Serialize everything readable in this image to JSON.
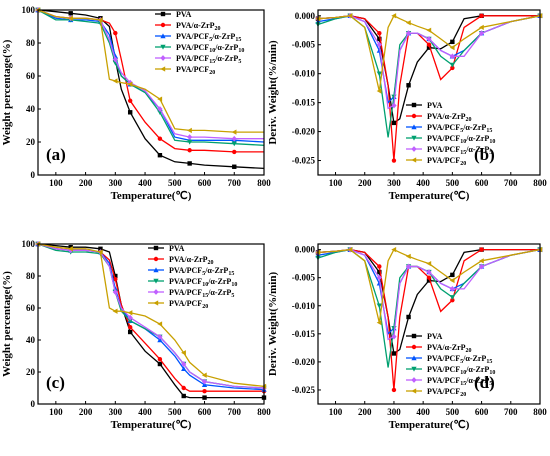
{
  "colors": [
    "#000000",
    "#ff0000",
    "#0055ff",
    "#00a070",
    "#c060ff",
    "#c8a000"
  ],
  "markers": [
    "square",
    "circle",
    "triangle-up",
    "triangle-down",
    "diamond",
    "triangle-left"
  ],
  "legend": [
    {
      "base": "PVA",
      "sub": ""
    },
    {
      "base": "PVA/α-ZrP",
      "sub": "20"
    },
    {
      "base": "PVA/PCF",
      "sub": "5",
      "base2": "/α-ZrP",
      "sub2": "15"
    },
    {
      "base": "PVA/PCF",
      "sub": "10",
      "base2": "/α-ZrP",
      "sub2": "10"
    },
    {
      "base": "PVA/PCF",
      "sub": "15",
      "base2": "/α-ZrP",
      "sub2": "5"
    },
    {
      "base": "PVA/PCF",
      "sub": "20"
    }
  ],
  "chart_data": [
    {
      "panel": "(a)",
      "type": "line",
      "xlabel": "Temperature(℃)",
      "ylabel": "Weight percentage(%)",
      "xlim": [
        40,
        800
      ],
      "ylim": [
        0,
        100
      ],
      "xticks": [
        100,
        200,
        300,
        400,
        500,
        600,
        700,
        800
      ],
      "yticks": [
        0,
        20,
        40,
        60,
        80,
        100
      ],
      "legend_position": "top-right",
      "series": [
        {
          "x": [
            40,
            100,
            150,
            200,
            250,
            280,
            300,
            320,
            350,
            400,
            450,
            500,
            550,
            600,
            700,
            800
          ],
          "y": [
            100,
            99,
            98,
            97,
            95,
            90,
            70,
            52,
            38,
            22,
            12,
            8,
            7,
            6,
            5,
            4
          ]
        },
        {
          "x": [
            40,
            100,
            150,
            200,
            250,
            280,
            300,
            320,
            350,
            400,
            450,
            500,
            550,
            600,
            700,
            800
          ],
          "y": [
            100,
            96,
            95,
            95,
            94,
            92,
            86,
            70,
            45,
            32,
            22,
            16,
            15,
            15,
            14,
            14
          ]
        },
        {
          "x": [
            40,
            100,
            150,
            200,
            250,
            280,
            300,
            320,
            350,
            400,
            450,
            500,
            550,
            600,
            700,
            800
          ],
          "y": [
            100,
            95,
            94,
            94,
            93,
            85,
            72,
            60,
            55,
            50,
            40,
            23,
            21,
            21,
            21,
            20
          ]
        },
        {
          "x": [
            40,
            100,
            150,
            200,
            250,
            280,
            300,
            320,
            350,
            400,
            450,
            500,
            550,
            600,
            700,
            800
          ],
          "y": [
            100,
            94,
            94,
            93,
            92,
            80,
            68,
            60,
            55,
            50,
            38,
            21,
            20,
            20,
            19,
            18
          ]
        },
        {
          "x": [
            40,
            100,
            150,
            200,
            250,
            280,
            300,
            320,
            350,
            400,
            450,
            500,
            550,
            600,
            700,
            800
          ],
          "y": [
            100,
            96,
            95,
            95,
            94,
            82,
            70,
            62,
            56,
            51,
            40,
            25,
            23,
            23,
            22,
            22
          ]
        },
        {
          "x": [
            40,
            100,
            150,
            200,
            250,
            280,
            300,
            320,
            350,
            400,
            450,
            500,
            550,
            600,
            700,
            800
          ],
          "y": [
            100,
            96,
            95,
            95,
            94,
            58,
            57,
            56,
            55,
            52,
            46,
            28,
            27,
            27,
            26,
            26
          ]
        }
      ]
    },
    {
      "panel": "(b)",
      "type": "line",
      "xlabel": "Temperature(℃)",
      "ylabel": "Deriv. Weight(%/min)",
      "xlim": [
        40,
        800
      ],
      "ylim": [
        -0.0275,
        0.001
      ],
      "xticks": [
        100,
        200,
        300,
        400,
        500,
        600,
        700,
        800
      ],
      "yticks": [
        0.0,
        -0.005,
        -0.01,
        -0.015,
        -0.02,
        -0.025
      ],
      "ytick_labels": [
        "0.000",
        "-0.005",
        "-0.010",
        "-0.015",
        "-0.020",
        "-0.025"
      ],
      "legend_position": "bottom-right",
      "series": [
        {
          "x": [
            40,
            100,
            150,
            200,
            250,
            280,
            300,
            320,
            350,
            380,
            420,
            460,
            500,
            540,
            600,
            700,
            800
          ],
          "y": [
            -0.0005,
            -0.0003,
            0,
            -0.0005,
            -0.004,
            -0.012,
            -0.0185,
            -0.0178,
            -0.012,
            -0.008,
            -0.0055,
            -0.0057,
            -0.0045,
            -0.0005,
            0,
            0,
            0
          ]
        },
        {
          "x": [
            40,
            100,
            150,
            200,
            250,
            280,
            300,
            320,
            350,
            380,
            420,
            460,
            500,
            540,
            600,
            700,
            800
          ],
          "y": [
            -0.0005,
            -0.0003,
            0,
            -0.0005,
            -0.003,
            -0.012,
            -0.025,
            -0.012,
            -0.003,
            -0.003,
            -0.005,
            -0.011,
            -0.009,
            -0.002,
            0,
            0,
            0
          ]
        },
        {
          "x": [
            40,
            100,
            150,
            200,
            250,
            280,
            300,
            320,
            350,
            380,
            420,
            460,
            500,
            540,
            600,
            700,
            800
          ],
          "y": [
            -0.001,
            -0.0005,
            0,
            -0.001,
            -0.006,
            -0.015,
            -0.014,
            -0.006,
            -0.003,
            -0.003,
            -0.004,
            -0.006,
            -0.007,
            -0.006,
            -0.003,
            -0.001,
            0
          ]
        },
        {
          "x": [
            40,
            100,
            150,
            200,
            250,
            280,
            300,
            320,
            350,
            380,
            420,
            460,
            500,
            540,
            600,
            700,
            800
          ],
          "y": [
            -0.0015,
            -0.0005,
            0,
            -0.002,
            -0.01,
            -0.021,
            -0.014,
            -0.005,
            -0.003,
            -0.003,
            -0.004,
            -0.007,
            -0.0085,
            -0.006,
            -0.003,
            -0.001,
            0
          ]
        },
        {
          "x": [
            40,
            100,
            150,
            200,
            250,
            280,
            300,
            320,
            350,
            380,
            420,
            460,
            500,
            540,
            600,
            700,
            800
          ],
          "y": [
            -0.0005,
            -0.0003,
            0,
            -0.001,
            -0.005,
            -0.016,
            -0.0155,
            -0.006,
            -0.003,
            -0.003,
            -0.004,
            -0.006,
            -0.007,
            -0.007,
            -0.003,
            -0.001,
            0
          ]
        },
        {
          "x": [
            40,
            100,
            150,
            200,
            250,
            280,
            300,
            320,
            350,
            380,
            420,
            460,
            500,
            540,
            600,
            700,
            800
          ],
          "y": [
            -0.0005,
            -0.0003,
            0,
            -0.002,
            -0.013,
            -0.002,
            0,
            -0.0005,
            -0.0012,
            -0.0018,
            -0.0025,
            -0.004,
            -0.0055,
            -0.004,
            -0.002,
            -0.001,
            0
          ]
        }
      ]
    },
    {
      "panel": "(c)",
      "type": "line",
      "xlabel": "Temperature(℃)",
      "ylabel": "Weight percentage(%)",
      "xlim": [
        40,
        800
      ],
      "ylim": [
        0,
        100
      ],
      "xticks": [
        100,
        200,
        300,
        400,
        500,
        600,
        700,
        800
      ],
      "yticks": [
        0,
        20,
        40,
        60,
        80,
        100
      ],
      "legend_position": "top-right",
      "series": [
        {
          "x": [
            40,
            100,
            150,
            200,
            250,
            280,
            300,
            320,
            350,
            400,
            450,
            500,
            530,
            550,
            600,
            700,
            800
          ],
          "y": [
            100,
            99,
            98,
            98,
            97,
            95,
            80,
            62,
            45,
            33,
            25,
            12,
            5,
            4,
            4,
            4,
            4
          ]
        },
        {
          "x": [
            40,
            100,
            150,
            200,
            250,
            280,
            300,
            320,
            350,
            400,
            450,
            500,
            530,
            550,
            600,
            700,
            800
          ],
          "y": [
            100,
            97,
            96,
            96,
            95,
            90,
            78,
            62,
            48,
            38,
            28,
            16,
            10,
            8,
            8,
            8,
            8
          ]
        },
        {
          "x": [
            40,
            100,
            150,
            200,
            250,
            280,
            300,
            320,
            350,
            400,
            450,
            500,
            530,
            550,
            600,
            700,
            800
          ],
          "y": [
            100,
            97,
            96,
            96,
            95,
            88,
            72,
            60,
            52,
            47,
            40,
            30,
            22,
            18,
            12,
            10,
            9
          ]
        },
        {
          "x": [
            40,
            100,
            150,
            200,
            250,
            280,
            300,
            320,
            350,
            400,
            450,
            500,
            530,
            550,
            600,
            700,
            800
          ],
          "y": [
            100,
            96,
            95,
            95,
            94,
            86,
            70,
            58,
            52,
            47,
            42,
            32,
            25,
            20,
            14,
            11,
            10
          ]
        },
        {
          "x": [
            40,
            100,
            150,
            200,
            250,
            280,
            300,
            320,
            350,
            400,
            450,
            500,
            530,
            550,
            600,
            700,
            800
          ],
          "y": [
            100,
            97,
            96,
            96,
            95,
            86,
            70,
            60,
            54,
            48,
            42,
            32,
            25,
            20,
            14,
            11,
            10
          ]
        },
        {
          "x": [
            40,
            100,
            150,
            200,
            250,
            280,
            300,
            320,
            350,
            400,
            450,
            500,
            530,
            550,
            600,
            700,
            800
          ],
          "y": [
            100,
            98,
            97,
            97,
            95,
            60,
            58,
            58,
            57,
            55,
            50,
            40,
            32,
            26,
            18,
            13,
            11
          ]
        }
      ]
    },
    {
      "panel": "(d)",
      "type": "line",
      "xlabel": "Temperature(℃)",
      "ylabel": "Deriv. Weight(%/min)",
      "xlim": [
        40,
        800
      ],
      "ylim": [
        -0.0275,
        0.001
      ],
      "xticks": [
        100,
        200,
        300,
        400,
        500,
        600,
        700,
        800
      ],
      "yticks": [
        0.0,
        -0.005,
        -0.01,
        -0.015,
        -0.02,
        -0.025
      ],
      "ytick_labels": [
        "0.000",
        "-0.005",
        "-0.010",
        "-0.015",
        "-0.020",
        "-0.025"
      ],
      "legend_position": "bottom-right",
      "series": [
        {
          "x": [
            40,
            100,
            150,
            200,
            250,
            280,
            300,
            320,
            350,
            380,
            420,
            460,
            500,
            540,
            600,
            700,
            800
          ],
          "y": [
            -0.0005,
            -0.0003,
            0,
            -0.0005,
            -0.004,
            -0.012,
            -0.0185,
            -0.0178,
            -0.012,
            -0.008,
            -0.0055,
            -0.0057,
            -0.0045,
            -0.0005,
            0,
            0,
            0
          ]
        },
        {
          "x": [
            40,
            100,
            150,
            200,
            250,
            280,
            300,
            320,
            350,
            380,
            420,
            460,
            500,
            540,
            600,
            700,
            800
          ],
          "y": [
            -0.0005,
            -0.0003,
            0,
            -0.0005,
            -0.003,
            -0.012,
            -0.025,
            -0.012,
            -0.003,
            -0.003,
            -0.005,
            -0.011,
            -0.009,
            -0.002,
            0,
            0,
            0
          ]
        },
        {
          "x": [
            40,
            100,
            150,
            200,
            250,
            280,
            300,
            320,
            350,
            380,
            420,
            460,
            500,
            540,
            600,
            700,
            800
          ],
          "y": [
            -0.001,
            -0.0005,
            0,
            -0.001,
            -0.006,
            -0.015,
            -0.014,
            -0.006,
            -0.003,
            -0.003,
            -0.004,
            -0.006,
            -0.007,
            -0.006,
            -0.003,
            -0.001,
            0
          ]
        },
        {
          "x": [
            40,
            100,
            150,
            200,
            250,
            280,
            300,
            320,
            350,
            380,
            420,
            460,
            500,
            540,
            600,
            700,
            800
          ],
          "y": [
            -0.0015,
            -0.0005,
            0,
            -0.002,
            -0.01,
            -0.021,
            -0.014,
            -0.005,
            -0.003,
            -0.003,
            -0.004,
            -0.007,
            -0.0085,
            -0.006,
            -0.003,
            -0.001,
            0
          ]
        },
        {
          "x": [
            40,
            100,
            150,
            200,
            250,
            280,
            300,
            320,
            350,
            380,
            420,
            460,
            500,
            540,
            600,
            700,
            800
          ],
          "y": [
            -0.0005,
            -0.0003,
            0,
            -0.001,
            -0.005,
            -0.016,
            -0.0155,
            -0.006,
            -0.003,
            -0.003,
            -0.004,
            -0.006,
            -0.007,
            -0.007,
            -0.003,
            -0.001,
            0
          ]
        },
        {
          "x": [
            40,
            100,
            150,
            200,
            250,
            280,
            300,
            320,
            350,
            380,
            420,
            460,
            500,
            540,
            600,
            700,
            800
          ],
          "y": [
            -0.0005,
            -0.0003,
            0,
            -0.002,
            -0.013,
            -0.002,
            0,
            -0.0005,
            -0.0012,
            -0.0018,
            -0.0025,
            -0.004,
            -0.0055,
            -0.004,
            -0.002,
            -0.001,
            0
          ]
        }
      ]
    }
  ]
}
